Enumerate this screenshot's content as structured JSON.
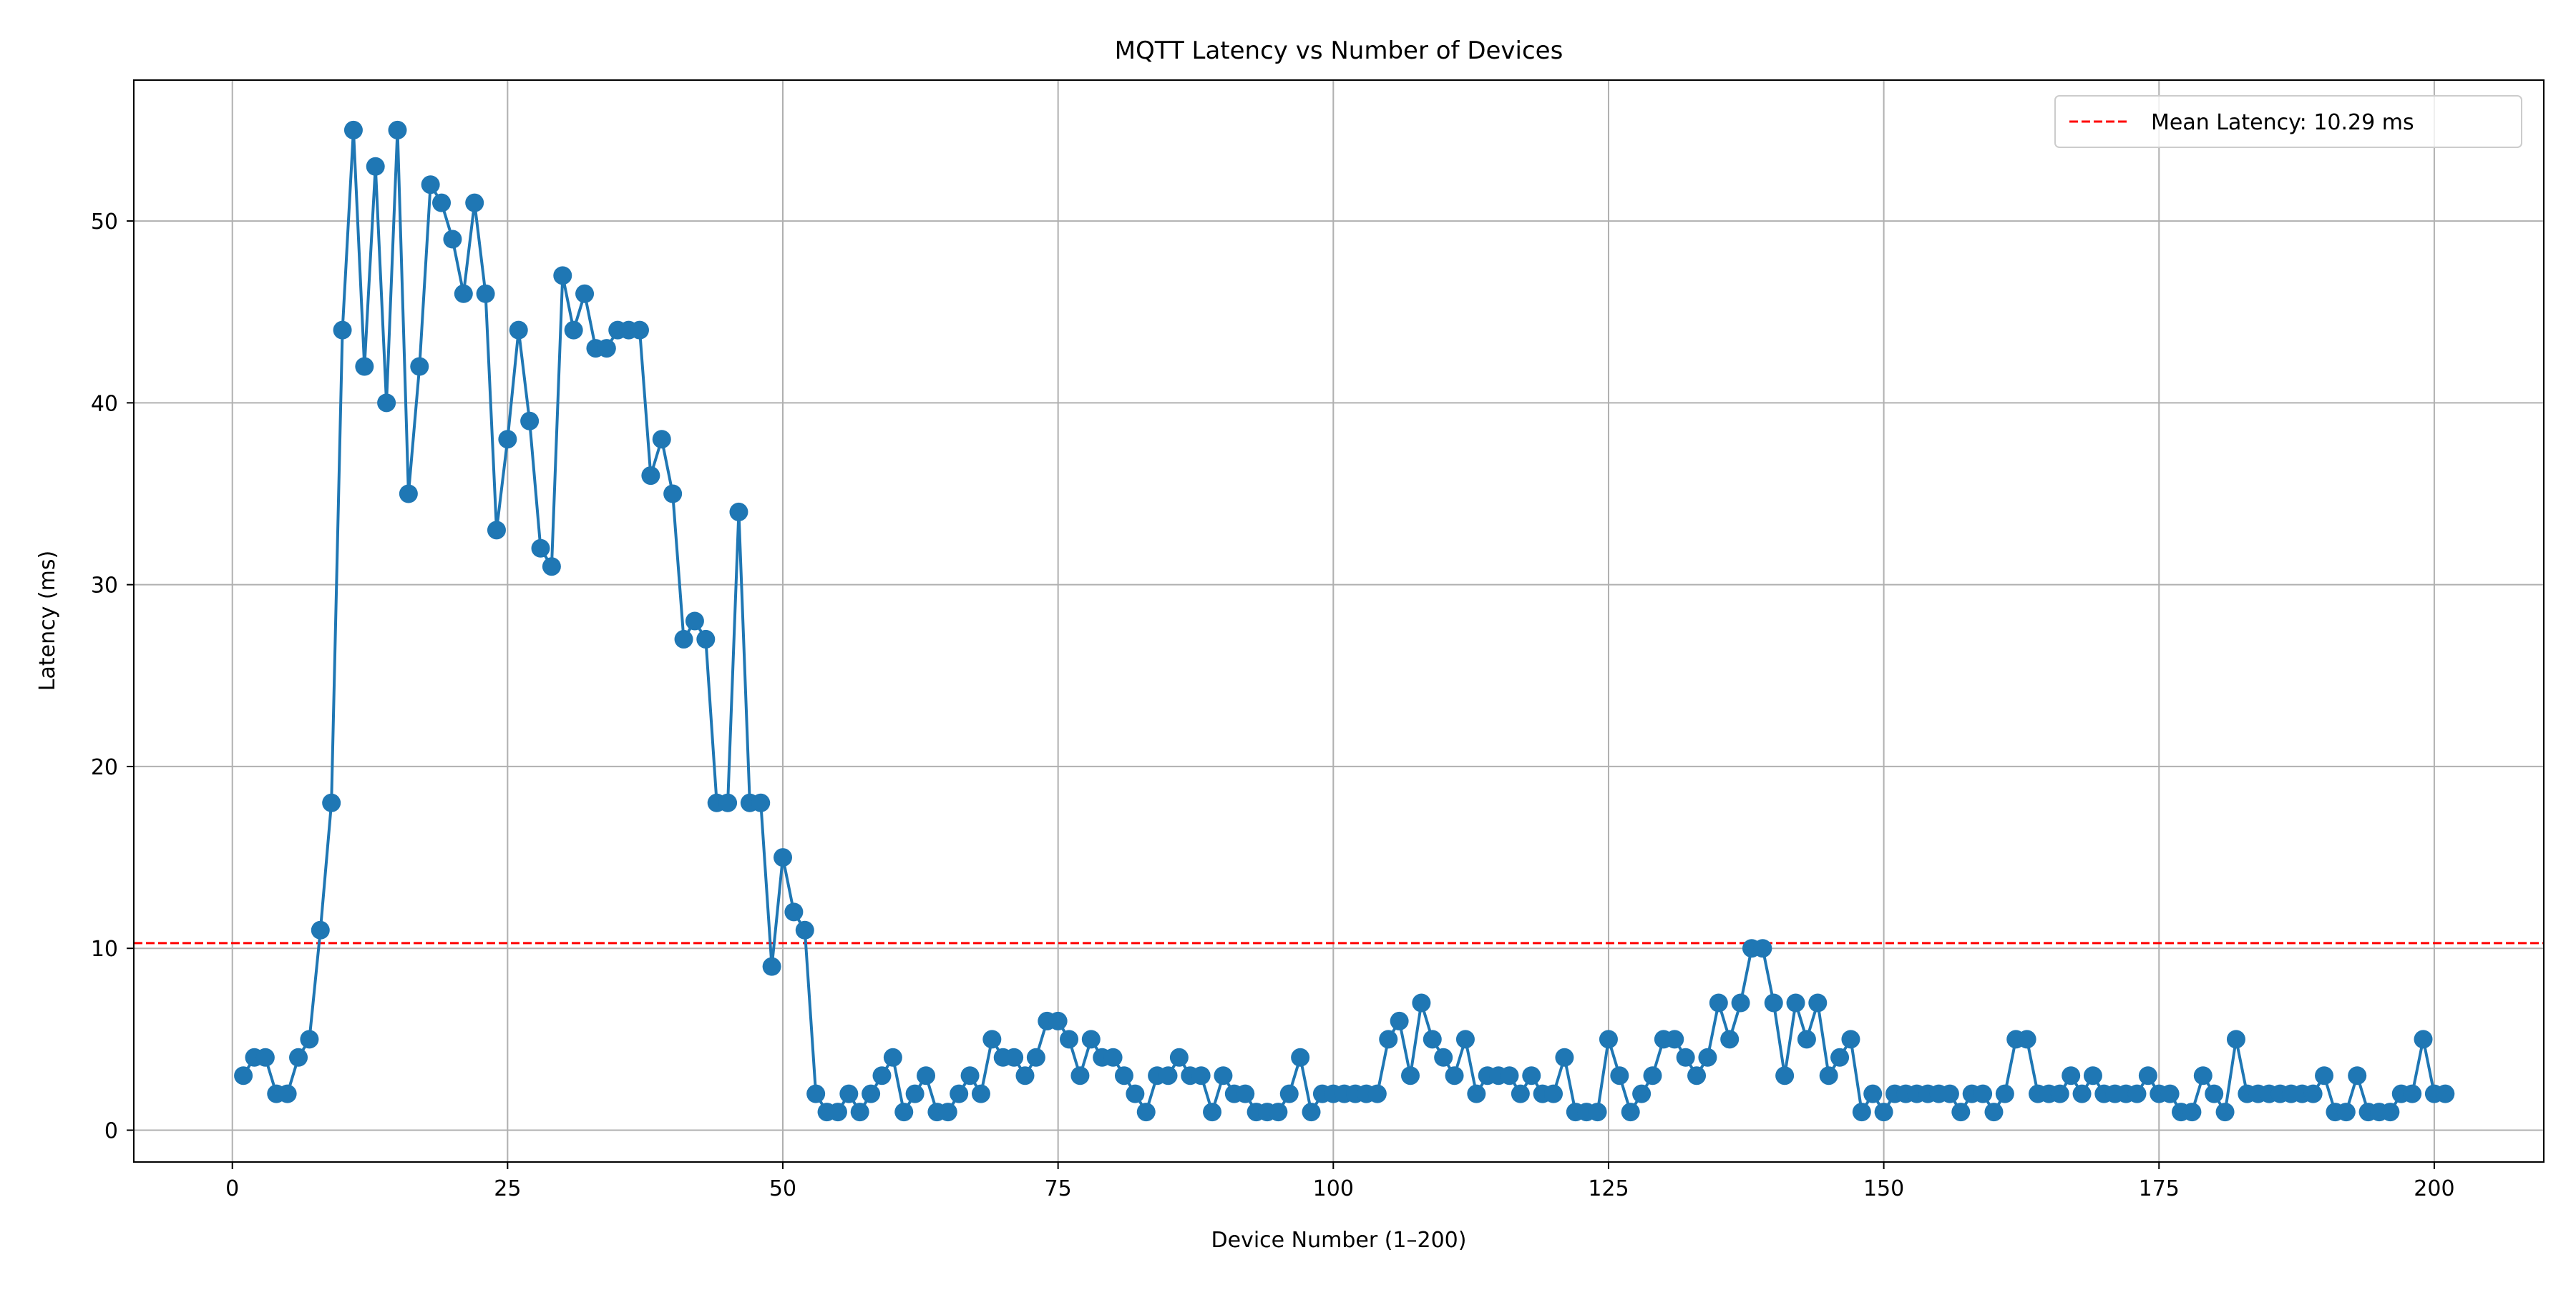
{
  "chart_data": {
    "type": "line",
    "title": "MQTT Latency vs Number of Devices",
    "xlabel": "Device Number (1–200)",
    "ylabel": "Latency (ms)",
    "xlim": [
      -8.95,
      209.95
    ],
    "ylim": [
      -1.75,
      57.75
    ],
    "xticks": [
      0,
      25,
      50,
      75,
      100,
      125,
      150,
      175,
      200
    ],
    "yticks": [
      0,
      10,
      20,
      30,
      40,
      50
    ],
    "grid": true,
    "legend": {
      "location": "top-right",
      "entries": [
        {
          "label": "Mean Latency: 10.29 ms",
          "style": "dashed",
          "color": "#ff0000"
        }
      ]
    },
    "mean_line": {
      "value": 10.29,
      "color": "#ff0000",
      "style": "dashed"
    },
    "series": [
      {
        "color": "#1f77b4",
        "marker": "circle",
        "x_start": 1,
        "x_step": 1,
        "values": [
          3,
          4,
          4,
          2,
          2,
          4,
          5,
          11,
          18,
          44,
          55,
          42,
          53,
          40,
          55,
          35,
          42,
          52,
          51,
          49,
          46,
          51,
          46,
          33,
          38,
          44,
          39,
          32,
          31,
          47,
          44,
          46,
          43,
          43,
          44,
          44,
          44,
          36,
          38,
          35,
          27,
          28,
          27,
          18,
          18,
          34,
          18,
          18,
          9,
          15,
          12,
          11,
          2,
          1,
          1,
          2,
          1,
          2,
          3,
          4,
          1,
          2,
          3,
          1,
          1,
          2,
          3,
          2,
          5,
          4,
          4,
          3,
          4,
          6,
          6,
          5,
          3,
          5,
          4,
          4,
          3,
          2,
          1,
          3,
          3,
          4,
          3,
          3,
          1,
          3,
          2,
          2,
          1,
          1,
          1,
          2,
          4,
          1,
          2,
          2,
          2,
          2,
          2,
          2,
          5,
          6,
          3,
          7,
          5,
          4,
          3,
          5,
          2,
          3,
          3,
          3,
          2,
          3,
          2,
          2,
          4,
          1,
          1,
          1,
          5,
          3,
          1,
          2,
          3,
          5,
          5,
          4,
          3,
          4,
          7,
          5,
          7,
          10,
          10,
          7,
          3,
          7,
          5,
          7,
          3,
          4,
          5,
          1,
          2,
          1,
          2,
          2,
          2,
          2,
          2,
          2,
          1,
          2,
          2,
          1,
          2,
          5,
          5,
          2,
          2,
          2,
          3,
          2,
          3,
          2,
          2,
          2,
          2,
          3,
          2,
          2,
          1,
          1,
          3,
          2,
          1,
          5,
          2,
          2,
          2,
          2,
          2,
          2,
          2,
          3,
          1,
          1,
          3,
          1,
          1,
          1,
          2,
          2,
          5,
          2,
          2
        ]
      }
    ]
  }
}
